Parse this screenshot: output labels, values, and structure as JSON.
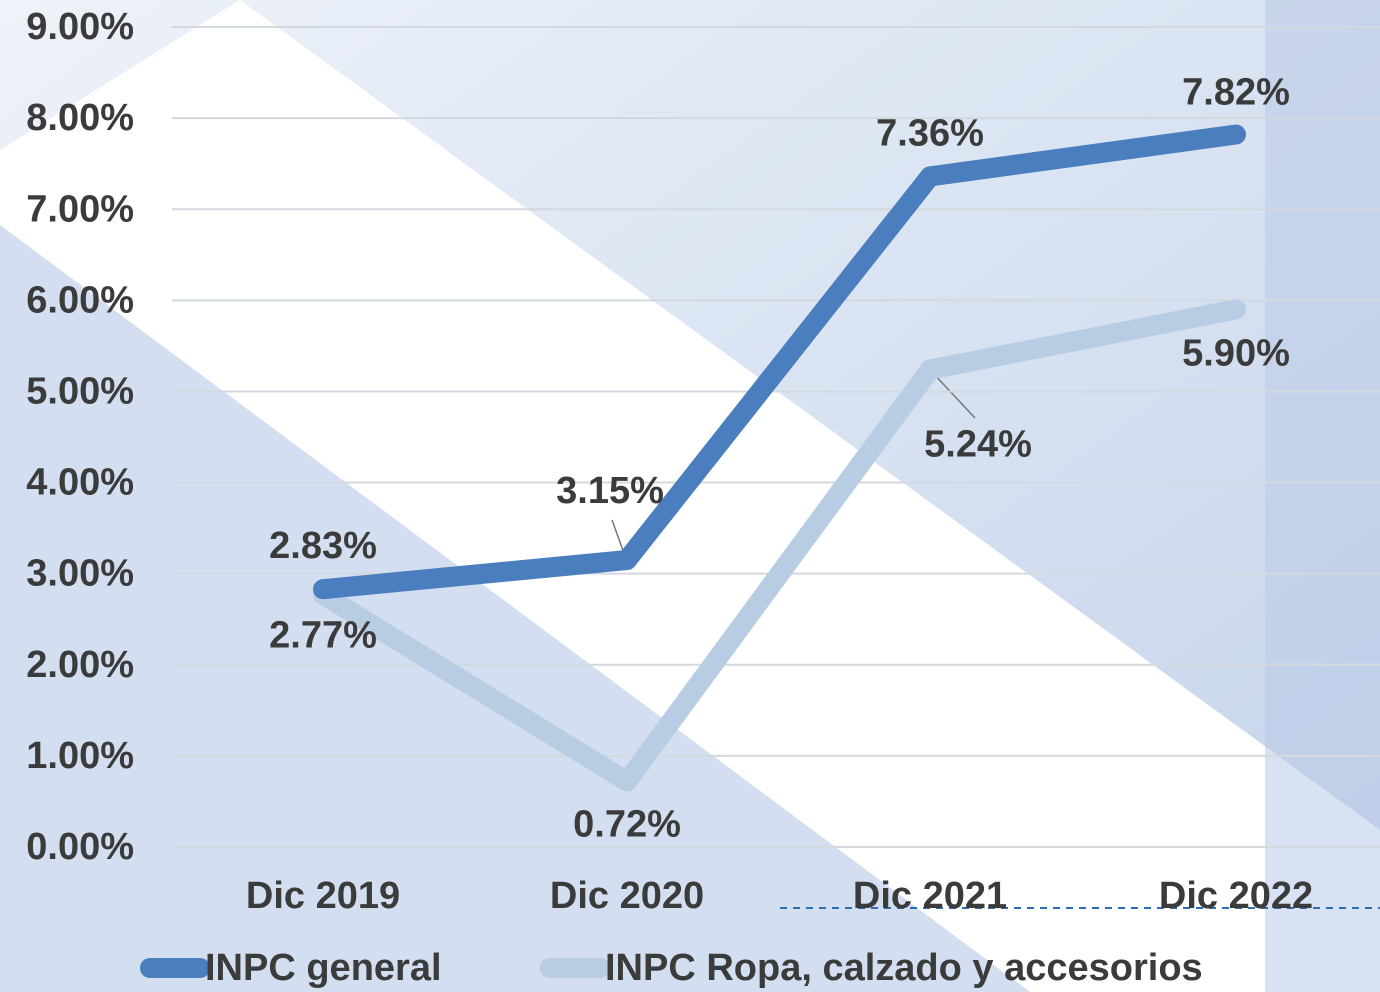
{
  "chart_data": {
    "type": "line",
    "categories": [
      "Dic 2019",
      "Dic 2020",
      "Dic 2021",
      "Dic 2022"
    ],
    "series": [
      {
        "name": "INPC general",
        "color": "#4a7ebf",
        "values": [
          2.83,
          3.15,
          7.36,
          7.82
        ],
        "value_labels": [
          "2.83%",
          "3.15%",
          "7.36%",
          "7.82%"
        ]
      },
      {
        "name": "INPC Ropa, calzado y accesorios",
        "color": "#b8cce4",
        "values": [
          2.77,
          0.72,
          5.24,
          5.9
        ],
        "value_labels": [
          "2.77%",
          "0.72%",
          "5.24%",
          "5.90%"
        ]
      }
    ],
    "ylim": [
      0,
      9
    ],
    "yticks": [
      {
        "value": 0,
        "label": "0.00%"
      },
      {
        "value": 1,
        "label": "1.00%"
      },
      {
        "value": 2,
        "label": "2.00%"
      },
      {
        "value": 3,
        "label": "3.00%"
      },
      {
        "value": 4,
        "label": "4.00%"
      },
      {
        "value": 5,
        "label": "5.00%"
      },
      {
        "value": 6,
        "label": "6.00%"
      },
      {
        "value": 7,
        "label": "7.00%"
      },
      {
        "value": 8,
        "label": "8.00%"
      },
      {
        "value": 9,
        "label": "9.00%"
      }
    ],
    "grid": true
  }
}
